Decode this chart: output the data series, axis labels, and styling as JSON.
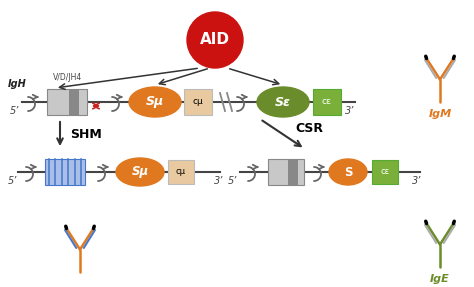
{
  "bg_color": "#ffffff",
  "aid_circle_color": "#cc1111",
  "aid_text": "AID",
  "aid_text_color": "#ffffff",
  "orange_color": "#e07820",
  "green_ellipse_color": "#6b8c2a",
  "green_box_color": "#7ab03a",
  "peach_box_color": "#e8c9a0",
  "gray_light": "#c8c8c8",
  "gray_dark": "#888888",
  "blue_stripe_color": "#4477cc",
  "blue_light": "#aabfe8",
  "line_color": "#444444",
  "arrow_color": "#333333",
  "promoter_color": "#666666",
  "shm_text": "SHM",
  "csr_text": "CSR",
  "igm_text": "IgM",
  "ige_text": "IgE",
  "igh_text": "IgH",
  "igm_color": "#e07820",
  "ige_color": "#6b8c2a",
  "prime5": "5’",
  "prime3": "3’",
  "vdjh4_text": "V/D/JH4",
  "su_text": "Sμ",
  "cu_text": "cμ",
  "se_text": "Sε",
  "ce_text": "cε",
  "s_text": "S",
  "red_arrow_color": "#cc2222"
}
